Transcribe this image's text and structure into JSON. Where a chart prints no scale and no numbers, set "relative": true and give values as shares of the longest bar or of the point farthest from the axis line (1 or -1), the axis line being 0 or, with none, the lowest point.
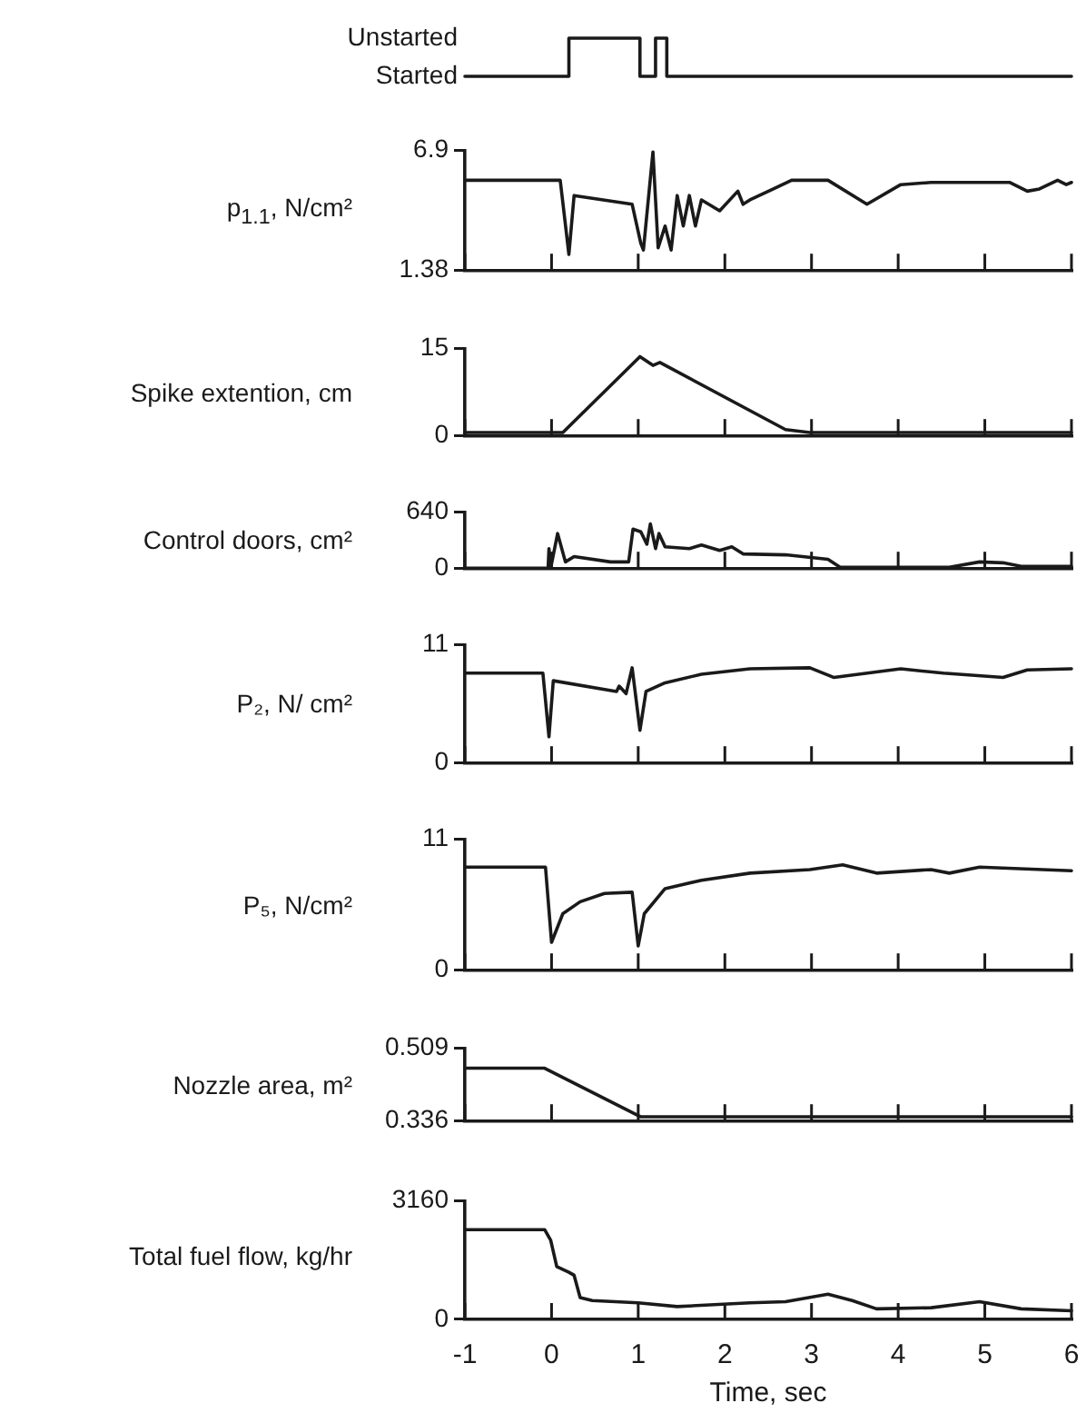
{
  "chart_data": [
    {
      "type": "step",
      "relative": true,
      "x": [
        -1,
        0.2,
        1.02,
        1.2,
        1.33,
        6
      ],
      "series": [
        {
          "color": "#1a1a1a",
          "values": [
            0,
            1,
            0,
            1,
            0,
            0
          ]
        }
      ],
      "xlim": [
        -1,
        6
      ],
      "annotations": [
        "Unstarted",
        "Started"
      ],
      "tick_labels": false
    },
    {
      "type": "line",
      "ylabel": "p$_{1.1}$, N/cm²",
      "x": [
        -1,
        0.1,
        0.2,
        0.26,
        0.93,
        1.03,
        1.06,
        1.17,
        1.23,
        1.31,
        1.38,
        1.45,
        1.52,
        1.59,
        1.66,
        1.73,
        1.94,
        2.15,
        2.21,
        2.29,
        2.56,
        2.77,
        3.19,
        3.64,
        4.03,
        4.38,
        5.29,
        5.49,
        5.63,
        5.84,
        5.94,
        6
      ],
      "series": [
        {
          "color": "#1a1a1a",
          "values": [
            5.5,
            5.5,
            2.1,
            4.8,
            4.4,
            2.6,
            2.3,
            6.8,
            2.4,
            3.4,
            2.3,
            4.8,
            3.4,
            4.8,
            3.4,
            4.6,
            4.1,
            5.0,
            4.4,
            4.6,
            5.1,
            5.5,
            5.5,
            4.4,
            5.3,
            5.4,
            5.4,
            5.0,
            5.1,
            5.5,
            5.3,
            5.4
          ]
        }
      ],
      "xlim": [
        -1,
        6
      ],
      "xticks": [
        -1,
        0,
        1,
        2,
        3,
        4,
        5,
        6
      ],
      "ylim": [
        1.38,
        6.9
      ],
      "yticks": [
        1.38,
        6.9
      ],
      "tick_labels": "y"
    },
    {
      "type": "line",
      "ylabel": "Spike extention, cm",
      "x": [
        -1,
        0.13,
        1.02,
        1.17,
        1.25,
        2.7,
        2.98,
        6
      ],
      "series": [
        {
          "color": "#1a1a1a",
          "values": [
            0.5,
            0.5,
            13.5,
            12,
            12.5,
            1,
            0.5,
            0.5
          ]
        }
      ],
      "xlim": [
        -1,
        6
      ],
      "xticks": [
        -1,
        0,
        1,
        2,
        3,
        4,
        5,
        6
      ],
      "ylim": [
        0,
        15
      ],
      "yticks": [
        0,
        15
      ],
      "tick_labels": "y"
    },
    {
      "type": "line",
      "ylabel": "Control doors, cm²",
      "x": [
        -1,
        -0.04,
        -0.03,
        -0.01,
        0.07,
        0.16,
        0.26,
        0.68,
        0.89,
        0.94,
        1.03,
        1.1,
        1.14,
        1.2,
        1.24,
        1.31,
        1.59,
        1.73,
        1.94,
        2.08,
        2.21,
        2.7,
        3.19,
        3.33,
        4.59,
        4.94,
        5.21,
        5.42,
        6
      ],
      "series": [
        {
          "color": "#1a1a1a",
          "values": [
            0,
            0,
            220,
            0,
            390,
            70,
            130,
            70,
            70,
            440,
            410,
            270,
            500,
            220,
            390,
            240,
            220,
            260,
            200,
            240,
            160,
            150,
            100,
            10,
            10,
            70,
            60,
            20,
            20
          ]
        }
      ],
      "xlim": [
        -1,
        6
      ],
      "xticks": [
        -1,
        0,
        1,
        2,
        3,
        4,
        5,
        6
      ],
      "ylim": [
        0,
        640
      ],
      "yticks": [
        0,
        640
      ],
      "tick_labels": "y"
    },
    {
      "type": "line",
      "ylabel": "P₂, N/ cm²",
      "x": [
        -1,
        -0.1,
        -0.03,
        0.02,
        0.75,
        0.78,
        0.86,
        0.93,
        1.02,
        1.09,
        1.31,
        1.73,
        2.29,
        2.98,
        3.26,
        4.03,
        4.52,
        5.21,
        5.49,
        6
      ],
      "series": [
        {
          "color": "#1a1a1a",
          "values": [
            8.3,
            8.3,
            2.4,
            7.6,
            6.6,
            7.1,
            6.4,
            8.8,
            3.0,
            6.6,
            7.4,
            8.2,
            8.7,
            8.8,
            7.9,
            8.7,
            8.3,
            7.9,
            8.6,
            8.7
          ]
        }
      ],
      "xlim": [
        -1,
        6
      ],
      "xticks": [
        -1,
        0,
        1,
        2,
        3,
        4,
        5,
        6
      ],
      "ylim": [
        0,
        11
      ],
      "yticks": [
        0,
        11
      ],
      "tick_labels": "y"
    },
    {
      "type": "line",
      "ylabel": "P₅, N/cm²",
      "x": [
        -1,
        -0.07,
        0,
        0.13,
        0.33,
        0.61,
        0.93,
        1.0,
        1.07,
        1.31,
        1.73,
        2.29,
        2.98,
        3.36,
        3.75,
        4.38,
        4.59,
        4.94,
        6
      ],
      "series": [
        {
          "color": "#1a1a1a",
          "values": [
            8.6,
            8.6,
            2.3,
            4.7,
            5.7,
            6.4,
            6.5,
            2.0,
            4.7,
            6.8,
            7.5,
            8.1,
            8.4,
            8.8,
            8.1,
            8.4,
            8.1,
            8.6,
            8.3
          ]
        }
      ],
      "xlim": [
        -1,
        6
      ],
      "xticks": [
        -1,
        0,
        1,
        2,
        3,
        4,
        5,
        6
      ],
      "ylim": [
        0,
        11
      ],
      "yticks": [
        0,
        11
      ],
      "tick_labels": "y"
    },
    {
      "type": "line",
      "ylabel": "Nozzle area, m²",
      "x": [
        -1,
        -0.08,
        1.03,
        6
      ],
      "series": [
        {
          "color": "#1a1a1a",
          "values": [
            0.46,
            0.46,
            0.345,
            0.345
          ]
        }
      ],
      "xlim": [
        -1,
        6
      ],
      "xticks": [
        -1,
        0,
        1,
        2,
        3,
        4,
        5,
        6
      ],
      "ylim": [
        0.336,
        0.509
      ],
      "yticks": [
        0.336,
        0.509
      ],
      "tick_labels": "y"
    },
    {
      "type": "line",
      "ylabel": "Total fuel flow, kg/hr",
      "xlabel": "Time, sec",
      "x": [
        -1,
        -0.08,
        -0.01,
        0.06,
        0.2,
        0.26,
        0.33,
        0.47,
        1.0,
        1.45,
        2.29,
        2.7,
        3.19,
        3.47,
        3.75,
        4.38,
        4.94,
        5.42,
        6
      ],
      "series": [
        {
          "color": "#1a1a1a",
          "values": [
            2380,
            2380,
            2100,
            1400,
            1250,
            1170,
            580,
            500,
            440,
            340,
            440,
            470,
            670,
            500,
            280,
            310,
            470,
            280,
            230
          ]
        }
      ],
      "xlim": [
        -1,
        6
      ],
      "xticks": [
        -1,
        0,
        1,
        2,
        3,
        4,
        5,
        6
      ],
      "ylim": [
        0,
        3160
      ],
      "yticks": [
        0,
        3160
      ]
    }
  ]
}
